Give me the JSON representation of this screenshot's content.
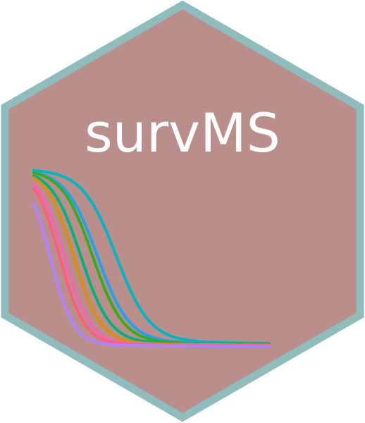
{
  "logo": {
    "title": "survMS",
    "colors": {
      "border": "#8fbcbd",
      "fill": "#b98e8b",
      "text": "#ffffff"
    }
  },
  "curves": [
    {
      "color": "#00b5c4",
      "median_shift": 0.3,
      "steep": 1.0
    },
    {
      "color": "#1fa2f2",
      "median_shift": 0.22,
      "steep": 1.05
    },
    {
      "color": "#3aab1c",
      "median_shift": 0.2,
      "steep": 1.1
    },
    {
      "color": "#00b37a",
      "median_shift": 0.15,
      "steep": 1.15
    },
    {
      "color": "#d99010",
      "median_shift": 0.12,
      "steep": 1.25
    },
    {
      "color": "#f365b5",
      "median_shift": 0.08,
      "steep": 1.3
    },
    {
      "color": "#ff5d7c",
      "median_shift": 0.06,
      "steep": 1.35
    },
    {
      "color": "#ad82ff",
      "median_shift": 0.02,
      "steep": 1.45
    }
  ]
}
